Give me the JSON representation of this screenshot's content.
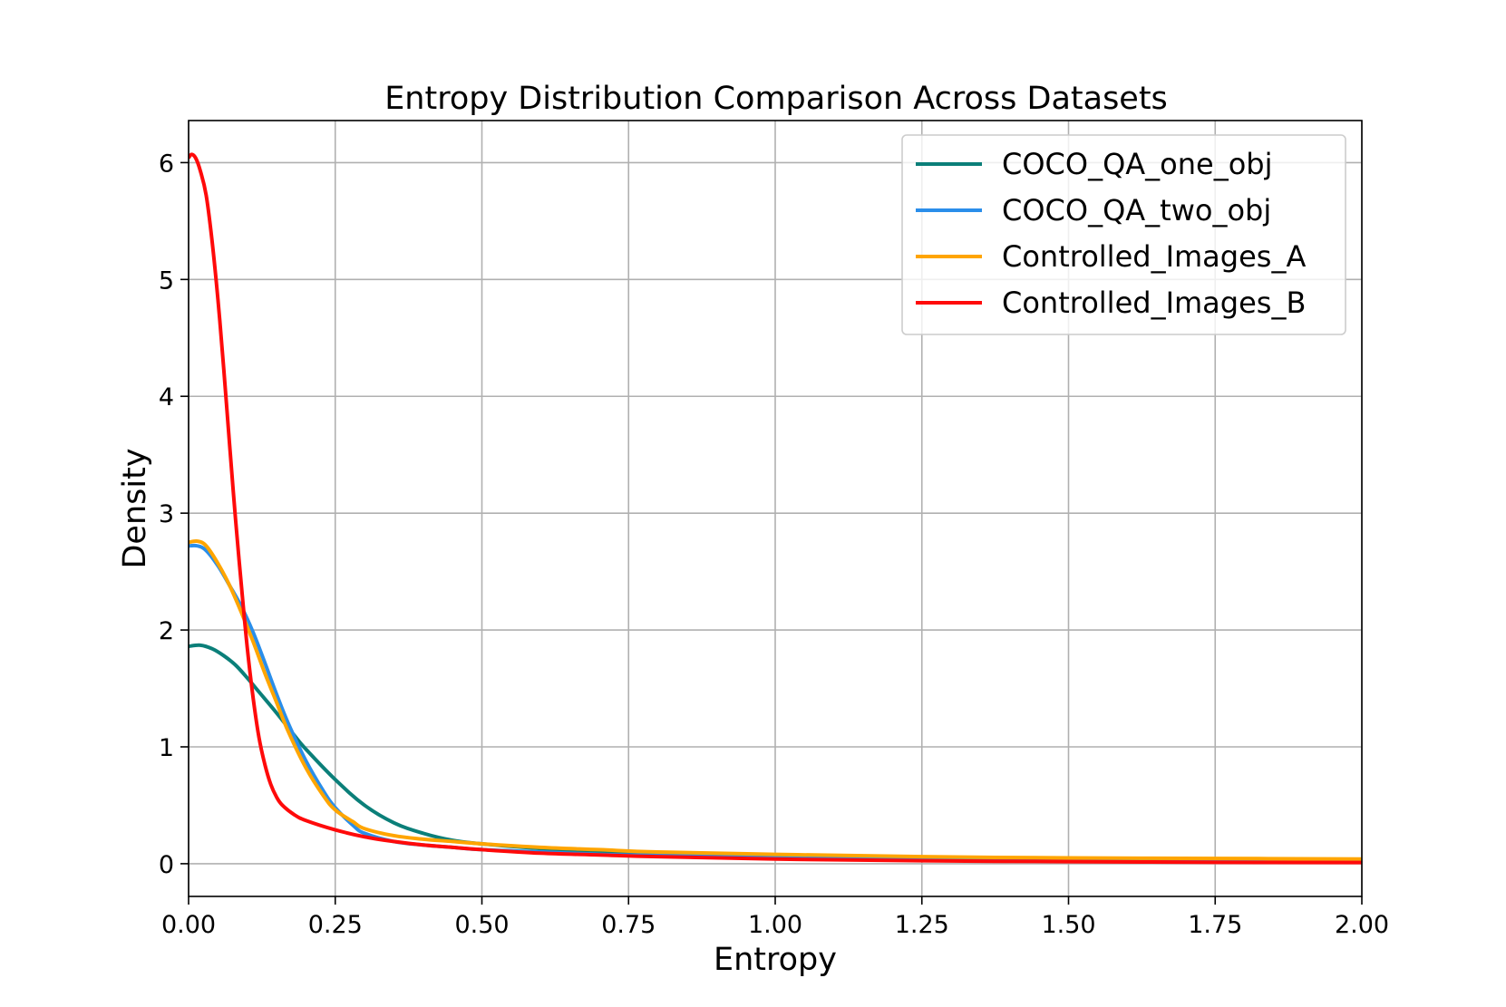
{
  "chart_data": {
    "type": "line",
    "title": "Entropy Distribution Comparison Across Datasets",
    "xlabel": "Entropy",
    "ylabel": "Density",
    "xlim": [
      0.0,
      2.0
    ],
    "ylim": [
      -0.28,
      6.36
    ],
    "grid": true,
    "legend_position": "top-right",
    "xticks": [
      0.0,
      0.25,
      0.5,
      0.75,
      1.0,
      1.25,
      1.5,
      1.75,
      2.0
    ],
    "xtick_labels": [
      "0.00",
      "0.25",
      "0.50",
      "0.75",
      "1.00",
      "1.25",
      "1.50",
      "1.75",
      "2.00"
    ],
    "yticks": [
      0,
      1,
      2,
      3,
      4,
      5,
      6
    ],
    "ytick_labels": [
      "0",
      "1",
      "2",
      "3",
      "4",
      "5",
      "6"
    ],
    "series": [
      {
        "name": "COCO_QA_one_obj",
        "color": "#0b7f79",
        "points": [
          [
            0.0,
            1.86
          ],
          [
            0.02,
            1.87
          ],
          [
            0.04,
            1.84
          ],
          [
            0.06,
            1.78
          ],
          [
            0.08,
            1.7
          ],
          [
            0.1,
            1.59
          ],
          [
            0.12,
            1.47
          ],
          [
            0.15,
            1.29
          ],
          [
            0.18,
            1.1
          ],
          [
            0.2,
            0.98
          ],
          [
            0.25,
            0.72
          ],
          [
            0.3,
            0.5
          ],
          [
            0.35,
            0.35
          ],
          [
            0.4,
            0.26
          ],
          [
            0.45,
            0.2
          ],
          [
            0.5,
            0.17
          ],
          [
            0.6,
            0.13
          ],
          [
            0.7,
            0.1
          ],
          [
            0.8,
            0.08
          ],
          [
            1.0,
            0.06
          ],
          [
            1.25,
            0.05
          ],
          [
            1.5,
            0.045
          ],
          [
            1.75,
            0.04
          ],
          [
            2.0,
            0.035
          ]
        ]
      },
      {
        "name": "COCO_QA_two_obj",
        "color": "#2a8eea",
        "points": [
          [
            0.0,
            2.72
          ],
          [
            0.015,
            2.72
          ],
          [
            0.03,
            2.68
          ],
          [
            0.05,
            2.55
          ],
          [
            0.07,
            2.38
          ],
          [
            0.09,
            2.2
          ],
          [
            0.11,
            1.98
          ],
          [
            0.13,
            1.72
          ],
          [
            0.15,
            1.45
          ],
          [
            0.17,
            1.2
          ],
          [
            0.2,
            0.88
          ],
          [
            0.23,
            0.62
          ],
          [
            0.25,
            0.48
          ],
          [
            0.28,
            0.33
          ],
          [
            0.3,
            0.26
          ],
          [
            0.35,
            0.19
          ],
          [
            0.4,
            0.16
          ],
          [
            0.45,
            0.14
          ],
          [
            0.5,
            0.12
          ],
          [
            0.6,
            0.1
          ],
          [
            0.7,
            0.08
          ],
          [
            0.8,
            0.07
          ],
          [
            1.0,
            0.05
          ],
          [
            1.25,
            0.04
          ],
          [
            1.5,
            0.035
          ],
          [
            1.75,
            0.03
          ],
          [
            2.0,
            0.025
          ]
        ]
      },
      {
        "name": "Controlled_Images_A",
        "color": "#ffa500",
        "points": [
          [
            0.0,
            2.75
          ],
          [
            0.015,
            2.76
          ],
          [
            0.03,
            2.72
          ],
          [
            0.05,
            2.57
          ],
          [
            0.07,
            2.38
          ],
          [
            0.09,
            2.15
          ],
          [
            0.11,
            1.9
          ],
          [
            0.13,
            1.63
          ],
          [
            0.15,
            1.38
          ],
          [
            0.17,
            1.13
          ],
          [
            0.2,
            0.82
          ],
          [
            0.23,
            0.58
          ],
          [
            0.25,
            0.46
          ],
          [
            0.28,
            0.36
          ],
          [
            0.3,
            0.3
          ],
          [
            0.35,
            0.24
          ],
          [
            0.4,
            0.21
          ],
          [
            0.45,
            0.19
          ],
          [
            0.5,
            0.17
          ],
          [
            0.6,
            0.14
          ],
          [
            0.7,
            0.12
          ],
          [
            0.8,
            0.1
          ],
          [
            1.0,
            0.08
          ],
          [
            1.25,
            0.06
          ],
          [
            1.5,
            0.05
          ],
          [
            1.75,
            0.045
          ],
          [
            2.0,
            0.04
          ]
        ]
      },
      {
        "name": "Controlled_Images_B",
        "color": "#ff0a0a",
        "points": [
          [
            0.0,
            6.04
          ],
          [
            0.005,
            6.07
          ],
          [
            0.012,
            6.04
          ],
          [
            0.02,
            5.93
          ],
          [
            0.03,
            5.72
          ],
          [
            0.04,
            5.33
          ],
          [
            0.05,
            4.83
          ],
          [
            0.06,
            4.23
          ],
          [
            0.07,
            3.58
          ],
          [
            0.08,
            2.95
          ],
          [
            0.09,
            2.38
          ],
          [
            0.1,
            1.85
          ],
          [
            0.11,
            1.42
          ],
          [
            0.12,
            1.08
          ],
          [
            0.13,
            0.85
          ],
          [
            0.14,
            0.68
          ],
          [
            0.15,
            0.57
          ],
          [
            0.16,
            0.5
          ],
          [
            0.18,
            0.42
          ],
          [
            0.2,
            0.37
          ],
          [
            0.25,
            0.29
          ],
          [
            0.3,
            0.23
          ],
          [
            0.35,
            0.19
          ],
          [
            0.4,
            0.16
          ],
          [
            0.45,
            0.14
          ],
          [
            0.5,
            0.12
          ],
          [
            0.6,
            0.09
          ],
          [
            0.7,
            0.075
          ],
          [
            0.8,
            0.06
          ],
          [
            1.0,
            0.04
          ],
          [
            1.25,
            0.025
          ],
          [
            1.5,
            0.018
          ],
          [
            1.75,
            0.012
          ],
          [
            2.0,
            0.01
          ]
        ]
      }
    ]
  }
}
